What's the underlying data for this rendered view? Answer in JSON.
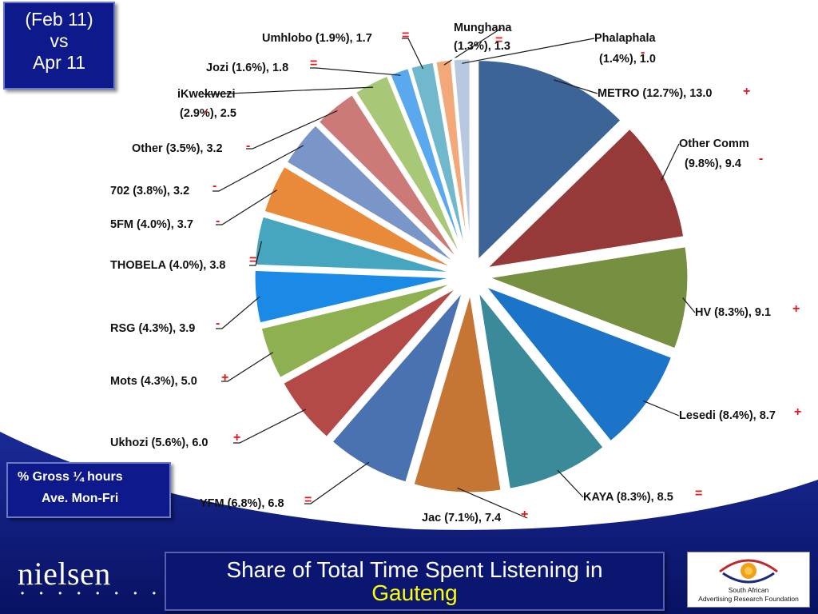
{
  "period": {
    "line1": "(Feb 11)",
    "line2": "vs",
    "line3": "Apr 11"
  },
  "measure": {
    "line1": "% Gross ¼ hours",
    "line2": "Ave. Mon-Fri"
  },
  "footer": {
    "title_line1": "Share of Total Time Spent Listening in",
    "title_line2": "Gauteng",
    "nielsen_logo": "nielsen",
    "nielsen_dots": "• • • • • • • •",
    "saarf_line1": "South African",
    "saarf_line2": "Advertising Research Foundation"
  },
  "colors": {
    "navy": "#0c1a7a",
    "mark_red": "#e8141c"
  },
  "chart_data": {
    "type": "pie",
    "exploded": true,
    "slices": [
      {
        "label": "METRO (12.7%), 13.0",
        "pct": 12.7,
        "value": 13.0,
        "change": "+",
        "color": "#3c6496"
      },
      {
        "label": "Other Comm (9.8%), 9.4",
        "pct": 9.8,
        "value": 9.4,
        "change": "-",
        "color": "#953a38"
      },
      {
        "label": "HV (8.3%), 9.1",
        "pct": 8.3,
        "value": 9.1,
        "change": "+",
        "color": "#778f40"
      },
      {
        "label": "Lesedi (8.4%), 8.7",
        "pct": 8.4,
        "value": 8.7,
        "change": "+",
        "color": "#1b74c8"
      },
      {
        "label": "KAYA (8.3%), 8.5",
        "pct": 8.3,
        "value": 8.5,
        "change": "=",
        "color": "#3a8a9a"
      },
      {
        "label": "Jac (7.1%), 7.4",
        "pct": 7.1,
        "value": 7.4,
        "change": "+",
        "color": "#c57634"
      },
      {
        "label": "YFM (6.8%), 6.8",
        "pct": 6.8,
        "value": 6.8,
        "change": "=",
        "color": "#4a72b0"
      },
      {
        "label": "Ukhozi (5.6%), 6.0",
        "pct": 5.6,
        "value": 6.0,
        "change": "+",
        "color": "#b44a48"
      },
      {
        "label": "Mots (4.3%), 5.0",
        "pct": 4.3,
        "value": 5.0,
        "change": "+",
        "color": "#8eb050"
      },
      {
        "label": "RSG (4.3%), 3.9",
        "pct": 4.3,
        "value": 3.9,
        "change": "-",
        "color": "#1a8ae6"
      },
      {
        "label": "THOBELA (4.0%), 3.8",
        "pct": 4.0,
        "value": 3.8,
        "change": "=",
        "color": "#46a6c0"
      },
      {
        "label": "5FM (4.0%), 3.7",
        "pct": 4.0,
        "value": 3.7,
        "change": "-",
        "color": "#e88a3a"
      },
      {
        "label": "702 (3.8%), 3.2",
        "pct": 3.8,
        "value": 3.2,
        "change": "-",
        "color": "#7a96c8"
      },
      {
        "label": "Other (3.5%), 3.2",
        "pct": 3.5,
        "value": 3.2,
        "change": "-",
        "color": "#cc7a78"
      },
      {
        "label": "iKwekwezi (2.9%), 2.5",
        "pct": 2.9,
        "value": 2.5,
        "change": "-",
        "color": "#a8c878"
      },
      {
        "label": "Jozi (1.6%), 1.8",
        "pct": 1.6,
        "value": 1.8,
        "change": "=",
        "color": "#5aa8ee"
      },
      {
        "label": "Umhlobo (1.9%), 1.7",
        "pct": 1.9,
        "value": 1.7,
        "change": "=",
        "color": "#72b8cc"
      },
      {
        "label": "Munghana (1.3%), 1.3",
        "pct": 1.3,
        "value": 1.3,
        "change": "=",
        "color": "#f2a878"
      },
      {
        "label": "Phalaphala (1.4%), 1.0",
        "pct": 1.4,
        "value": 1.0,
        "change": "-",
        "color": "#b8c8e0"
      }
    ]
  }
}
